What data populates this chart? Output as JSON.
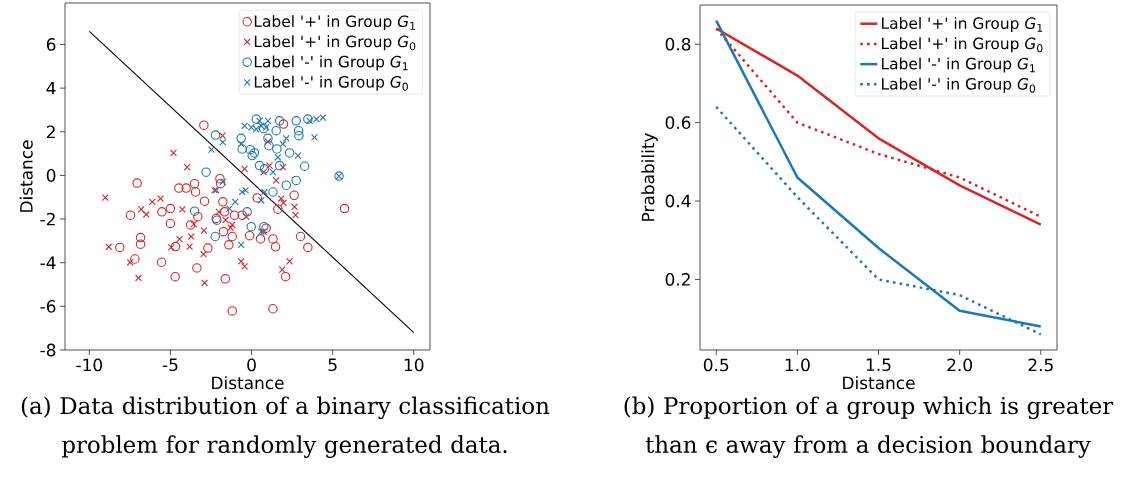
{
  "chart_data": [
    {
      "type": "scatter",
      "xlabel": "Distance",
      "ylabel": "Distance",
      "xlim": [
        -11.5,
        11
      ],
      "ylim": [
        -8,
        7.9
      ],
      "xticks": [
        -10,
        -5,
        0,
        5,
        10
      ],
      "yticks": [
        -8,
        -6,
        -4,
        -2,
        0,
        2,
        4,
        6
      ],
      "legend": "top right",
      "annotations": [
        "(a) Data distribution of a binary classification problem for randomly generated data."
      ],
      "series": [
        {
          "name": "Label '+' in Group *G*$_{1}$",
          "color": "#d62728",
          "marker": "circle",
          "x": [
            -2.94,
            -7.05,
            -7.46,
            -8.12,
            -6.84,
            -6.84,
            -7.19,
            -5.55,
            -5.53,
            -5.0,
            -5.0,
            -4.69,
            -4.71,
            -4.48,
            -4.03,
            -3.51,
            -3.45,
            -2.9,
            -3.31,
            -3.76,
            -2.69,
            -3.37,
            -1.95,
            -1.91,
            -1.77,
            -2.18,
            -1.66,
            -1.73,
            -1.4,
            -1.19,
            -1.62,
            -1.19,
            -1.05,
            -0.58,
            -0.12,
            0.55,
            0.9,
            1.32,
            1.48,
            1.32,
            1.62,
            2.63,
            3.02,
            3.47,
            2.1,
            1.97,
            0.35,
            5.73
          ],
          "values": [
            2.3,
            -0.35,
            -1.82,
            -3.3,
            -2.85,
            -3.15,
            -3.83,
            -3.98,
            -1.67,
            -1.52,
            -2.2,
            -3.26,
            -4.64,
            -0.58,
            -0.58,
            -0.38,
            -0.76,
            -1.18,
            -1.89,
            -2.27,
            -3.33,
            -4.24,
            -0.15,
            -0.38,
            -1.21,
            -1.97,
            -1.67,
            -2.58,
            -3.18,
            -2.8,
            -4.74,
            -6.21,
            -1.82,
            -1.82,
            -2.76,
            -2.91,
            -2.42,
            -2.91,
            -3.27,
            -6.11,
            -1.55,
            -0.91,
            -2.8,
            -3.3,
            -4.64,
            2.35,
            -1.03,
            -1.52
          ]
        },
        {
          "name": "Label '+' in Group *G*$_{0}$",
          "color": "#d62728",
          "marker": "cross",
          "x": [
            -9.02,
            -8.8,
            -7.48,
            -6.97,
            -6.8,
            -6.49,
            -6.12,
            -5.61,
            -4.81,
            -3.97,
            -4.27,
            -4.95,
            -4.44,
            -3.82,
            -3.72,
            -3.56,
            -2.94,
            -2.96,
            -2.9,
            -2.28,
            -1.79,
            -2.01,
            -1.6,
            -1.19,
            -0.64,
            -0.43,
            -0.33,
            -0.43,
            1.01,
            0.74,
            1.11,
            1.52,
            1.93,
            1.83,
            1.97,
            2.65,
            2.71,
            1.89,
            2.34,
            0.74,
            -1.29
          ],
          "values": [
            -1.02,
            -3.27,
            -3.98,
            -4.7,
            -1.56,
            -1.79,
            -1.21,
            -1.06,
            1.03,
            0.38,
            -1.56,
            -3.3,
            -2.92,
            -3.26,
            -2.8,
            -2.23,
            -2.53,
            -3.61,
            -4.92,
            -0.68,
            1.82,
            -1.67,
            -2.05,
            -2.27,
            -3.94,
            -4.17,
            -1.89,
            0.3,
            1.55,
            0.15,
            0.45,
            -0.23,
            0.38,
            -1.06,
            -1.26,
            -1.44,
            -1.82,
            -4.32,
            -3.94,
            -2.58,
            -2.39
          ]
        },
        {
          "name": "Label '-' in Group *G*$_{1}$",
          "color": "#1f77b4",
          "marker": "circle",
          "x": [
            -2.22,
            -2.8,
            -3.51,
            -2.14,
            -2.24,
            -0.64,
            -0.58,
            -0.08,
            0.18,
            0.04,
            0.29,
            0.74,
            1.01,
            1.52,
            1.73,
            1.07,
            1.56,
            2.34,
            2.75,
            2.9,
            2.92,
            3.27,
            2.75,
            2.14,
            0.8,
            0.49,
            1.32,
            -0.27,
            -0.02,
            0.76,
            1.73,
            3.47,
            5.39
          ],
          "values": [
            1.85,
            0.15,
            -1.64,
            -2.05,
            -2.8,
            1.7,
            1.21,
            1.18,
            1.03,
            0.91,
            2.58,
            2.15,
            1.7,
            2.05,
            2.5,
            1.36,
            1.21,
            1.03,
            2.5,
            2.05,
            1.82,
            0.42,
            -0.23,
            -0.45,
            0.3,
            0.45,
            -0.76,
            -1.67,
            -2.35,
            -2.35,
            0.45,
            2.58,
            -0.03
          ]
        },
        {
          "name": "Label '-' in Group *G*$_{0}$",
          "color": "#1f77b4",
          "marker": "cross",
          "x": [
            -2.47,
            -1.77,
            -0.43,
            -0.02,
            0.29,
            0.6,
            0.9,
            0.49,
            1.01,
            2.14,
            1.93,
            2.86,
            1.62,
            1.32,
            3.58,
            3.88,
            4.4,
            4.0,
            -0.64,
            -2.18,
            -1.77,
            -0.58,
            -0.37,
            -1.01,
            -1.36,
            -0.64,
            0.8,
            0.6,
            0.6,
            5.39
          ],
          "values": [
            1.18,
            1.52,
            2.27,
            2.2,
            2.12,
            2.27,
            2.2,
            2.5,
            2.5,
            1.7,
            1.44,
            0.91,
            0.83,
            0.15,
            2.5,
            1.74,
            2.65,
            2.58,
            1.44,
            -0.68,
            -0.3,
            -0.76,
            -0.68,
            -1.21,
            -1.52,
            -3.18,
            -0.76,
            -1.14,
            -2.58,
            -0.03
          ]
        },
        {
          "type": "line",
          "color": "#000000",
          "marker": "none",
          "x": [
            -10,
            10
          ],
          "values": [
            6.6,
            -7.2
          ]
        }
      ]
    },
    {
      "type": "line",
      "xlabel": "Distance",
      "ylabel": "Prabability",
      "xlim": [
        0.4,
        2.6
      ],
      "ylim": [
        0.02,
        0.9
      ],
      "xticks": [
        0.5,
        {
          "value": 1,
          "label": "1.0"
        },
        1.5,
        {
          "value": 2,
          "label": "2.0"
        },
        2.5
      ],
      "yticks": [
        0.2,
        0.4,
        0.6,
        0.8
      ],
      "legend": "top right",
      "marker": "none",
      "annotations": [
        "(b) Proportion of a group which is greater than ϵ away from a decision boundary"
      ],
      "x": [
        0.5,
        1.0,
        1.5,
        2.0,
        2.5
      ],
      "series": [
        {
          "name": "Label '+' in Group *G*$_{1}$",
          "color": "#d62728",
          "line_style": "solid",
          "values": [
            0.84,
            0.72,
            0.56,
            0.44,
            0.34
          ]
        },
        {
          "name": "Label '+' in Group *G*$_{0}$",
          "color": "#d62728",
          "line_style": "dotted",
          "values": [
            0.84,
            0.6,
            0.52,
            0.46,
            0.36
          ]
        },
        {
          "name": "Label '-' in Group *G*$_{1}$",
          "color": "#1f77b4",
          "line_style": "solid",
          "values": [
            0.86,
            0.46,
            0.28,
            0.12,
            0.08
          ]
        },
        {
          "name": "Label '-' in Group *G*$_{0}$",
          "color": "#1f77b4",
          "line_style": "dotted",
          "values": [
            0.64,
            0.41,
            0.2,
            0.16,
            0.06
          ]
        }
      ]
    }
  ]
}
